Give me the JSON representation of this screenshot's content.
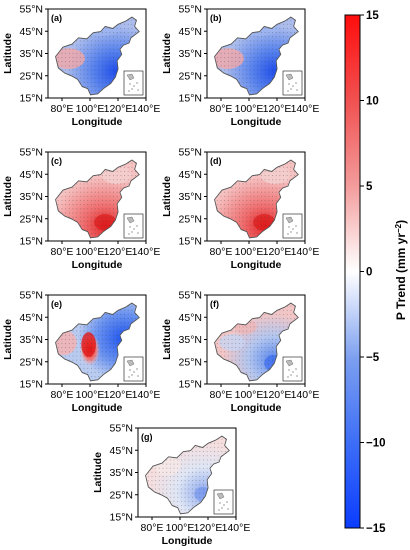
{
  "figure": {
    "panels": [
      {
        "id": "a",
        "label": "(a)",
        "pattern": "blue_east"
      },
      {
        "id": "b",
        "label": "(b)",
        "pattern": "blue_east"
      },
      {
        "id": "c",
        "label": "(c)",
        "pattern": "red_all"
      },
      {
        "id": "d",
        "label": "(d)",
        "pattern": "red_all"
      },
      {
        "id": "e",
        "label": "(e)",
        "pattern": "dipole"
      },
      {
        "id": "f",
        "label": "(f)",
        "pattern": "mixed"
      },
      {
        "id": "g",
        "label": "(g)",
        "pattern": "weak"
      }
    ],
    "y_ticks": [
      "55°N",
      "45°N",
      "35°N",
      "25°N",
      "15°N"
    ],
    "x_ticks": [
      "80°E",
      "100°E",
      "120°E",
      "140°E"
    ],
    "x_label": "Longitude",
    "y_label": "Latitude",
    "colorbar": {
      "ticks": [
        "15",
        "10",
        "5",
        "0",
        "−5",
        "−10",
        "−15"
      ],
      "title_main": "P Trend (mm yr",
      "title_sup": "−2",
      "title_end": ")",
      "range": [
        -15,
        15
      ],
      "colors": [
        "#0b3cff",
        "#4f7df2",
        "#a9c0ef",
        "#ffffff",
        "#f0a9a9",
        "#ef5050",
        "#ff0f0f"
      ]
    }
  }
}
